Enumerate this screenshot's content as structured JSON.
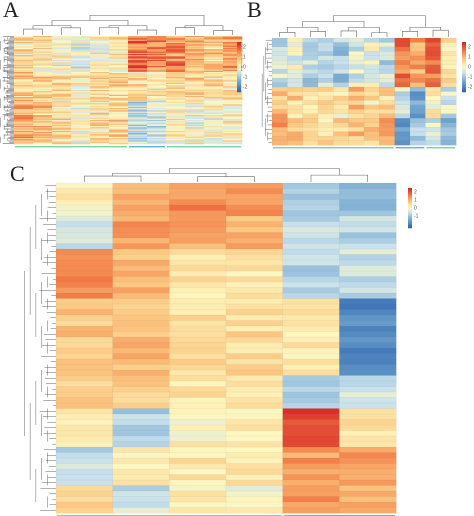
{
  "figure": {
    "panels": [
      "A",
      "B",
      "C"
    ]
  },
  "chart_data": [
    {
      "type": "heatmap",
      "panel": "A",
      "rows": 90,
      "columns": 12,
      "value_range": [
        -2.5,
        2.5
      ],
      "colorbar_ticks": [
        2,
        1,
        0,
        -1,
        -2
      ],
      "column_groups": [
        {
          "columns": [
            0,
            5
          ],
          "color": "#7fd19a"
        },
        {
          "columns": [
            6,
            7
          ],
          "color": "#6aaed6"
        },
        {
          "columns": [
            8,
            11
          ],
          "color": "#7fd19a"
        }
      ],
      "column_profile": [
        0.35,
        0.2,
        0.15,
        -0.05,
        0.1,
        0.25,
        1.3,
        1.1,
        0.9,
        0.7,
        0.6,
        0.8
      ],
      "row_blocks": [
        {
          "rows": [
            0,
            29
          ],
          "pattern": [
            0.4,
            0.3,
            0.2,
            -0.3,
            0.1,
            0.3,
            1.8,
            1.5,
            1.6,
            1.0,
            0.8,
            1.2
          ]
        },
        {
          "rows": [
            30,
            54
          ],
          "pattern": [
            0.8,
            0.6,
            0.4,
            0.2,
            0.5,
            0.6,
            0.3,
            0.2,
            0.4,
            0.5,
            0.3,
            0.2
          ]
        },
        {
          "rows": [
            55,
            89
          ],
          "pattern": [
            1.2,
            0.9,
            0.5,
            0.1,
            0.4,
            0.6,
            -1.2,
            -0.8,
            0.0,
            -0.3,
            -0.1,
            0.1
          ]
        }
      ]
    },
    {
      "type": "heatmap",
      "panel": "B",
      "rows": 24,
      "columns": 12,
      "value_range": [
        -2.5,
        2.5
      ],
      "colorbar_ticks": [
        2,
        1,
        0,
        -1,
        -2
      ],
      "column_groups": [
        {
          "columns": [
            0,
            7
          ],
          "color": "#7fd19a"
        },
        {
          "columns": [
            8,
            9
          ],
          "color": "#6aaed6"
        },
        {
          "columns": [
            10,
            11
          ],
          "color": "#7fd19a"
        }
      ],
      "row_blocks": [
        {
          "rows": [
            0,
            10
          ],
          "pattern": [
            -0.6,
            -0.3,
            -0.8,
            -0.5,
            -0.9,
            -0.4,
            -0.2,
            -0.7,
            1.6,
            1.2,
            1.8,
            0.4
          ]
        },
        {
          "rows": [
            11,
            17
          ],
          "pattern": [
            0.9,
            0.6,
            0.3,
            0.5,
            0.2,
            0.8,
            0.4,
            0.6,
            -0.4,
            -1.4,
            0.2,
            -0.6
          ]
        },
        {
          "rows": [
            18,
            23
          ],
          "pattern": [
            1.4,
            1.0,
            0.7,
            0.5,
            0.6,
            0.9,
            0.8,
            1.1,
            -1.6,
            -1.0,
            -0.5,
            -1.2
          ]
        }
      ]
    },
    {
      "type": "heatmap",
      "panel": "C",
      "rows": 60,
      "columns": 6,
      "value_range": [
        -2.5,
        2.5
      ],
      "colorbar_ticks": [
        2,
        1,
        0,
        -1
      ],
      "column_groups": [
        {
          "columns": [
            0,
            3
          ],
          "color": "#7fd19a"
        },
        {
          "columns": [
            4,
            5
          ],
          "color": "#6aaed6"
        }
      ],
      "row_blocks": [
        {
          "rows": [
            0,
            5
          ],
          "pattern": [
            0.1,
            1.1,
            1.5,
            1.3,
            -0.9,
            -1.3
          ]
        },
        {
          "rows": [
            6,
            11
          ],
          "pattern": [
            -0.4,
            1.3,
            1.1,
            1.0,
            -0.7,
            -0.8
          ]
        },
        {
          "rows": [
            12,
            20
          ],
          "pattern": [
            1.6,
            0.9,
            0.3,
            0.3,
            -0.8,
            -0.6
          ]
        },
        {
          "rows": [
            21,
            34
          ],
          "pattern": [
            0.8,
            0.9,
            0.5,
            0.5,
            0.2,
            -2.0
          ]
        },
        {
          "rows": [
            35,
            40
          ],
          "pattern": [
            0.6,
            0.7,
            0.4,
            0.4,
            -0.9,
            -0.5
          ]
        },
        {
          "rows": [
            41,
            47
          ],
          "pattern": [
            0.1,
            -0.8,
            0.1,
            0.2,
            2.2,
            0.3
          ]
        },
        {
          "rows": [
            48,
            54
          ],
          "pattern": [
            -0.7,
            0.1,
            0.3,
            0.2,
            1.3,
            1.4
          ]
        },
        {
          "rows": [
            55,
            59
          ],
          "pattern": [
            0.5,
            -0.6,
            0.1,
            0.0,
            1.5,
            1.0
          ]
        }
      ]
    }
  ]
}
